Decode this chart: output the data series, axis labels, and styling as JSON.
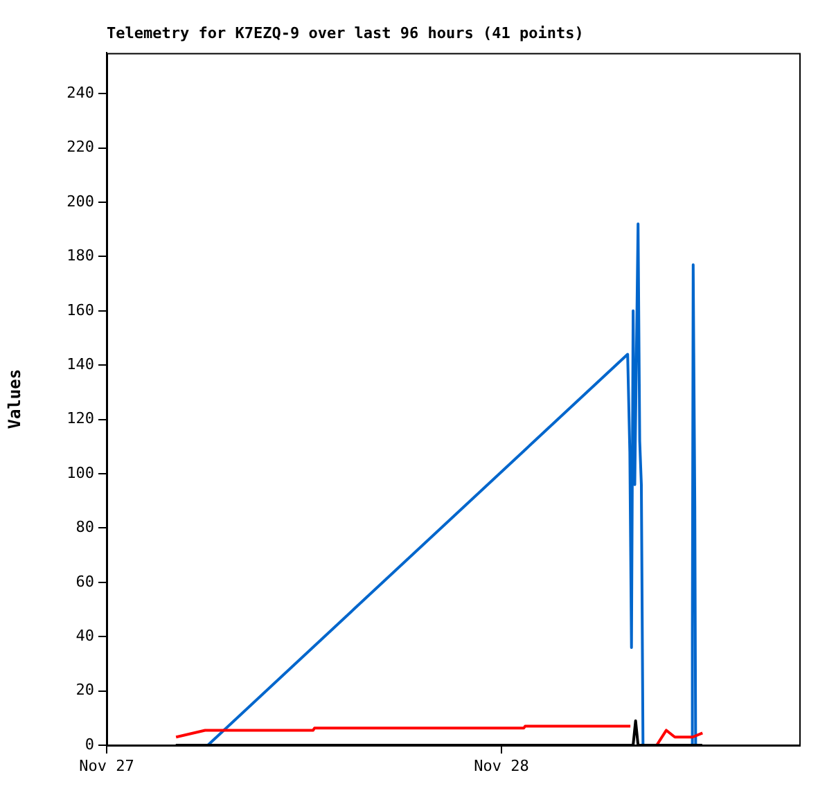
{
  "chart_data": {
    "type": "line",
    "title": "Telemetry for K7EZQ-9 over last 96 hours (41 points)",
    "ylabel": "Values",
    "xlim": [
      "--11-27",
      "--11-28T18:06"
    ],
    "xticks": [
      {
        "value": "--11-27",
        "label": "Nov 27"
      },
      {
        "value": "--11-28",
        "label": "Nov 28"
      }
    ],
    "ylim": [
      0,
      255
    ],
    "yticks": [
      0,
      20,
      40,
      60,
      80,
      100,
      120,
      140,
      160,
      180,
      200,
      220,
      240
    ],
    "grid": false,
    "series": [
      {
        "color": "#000000",
        "x": [
          "--11-27T04:12",
          "--11-28T08:00",
          "--11-28T08:09",
          "--11-28T08:18",
          "--11-28T12:12"
        ],
        "values": [
          0,
          0,
          9,
          0,
          0
        ]
      },
      {
        "color": "#ff0000",
        "x": [
          "--11-27T04:13",
          "--11-27T05:59",
          "--11-27T12:33",
          "--11-27T12:38",
          "--11-28T01:21",
          "--11-28T01:26",
          "--11-28T07:50",
          "--11-28T08:36",
          "--11-28T09:26",
          "--11-28T10:01",
          "--11-28T10:32",
          "--11-28T11:37",
          "--11-28T12:13"
        ],
        "values": [
          3,
          5.5,
          5.5,
          6.3,
          6.3,
          7,
          7,
          null,
          0,
          5.5,
          3,
          3,
          4.5
        ]
      },
      {
        "color": "#0066cc",
        "x": [
          "--11-27T06:09",
          "--11-28T07:40",
          "--11-28T07:48",
          "--11-28T07:54",
          "--11-28T08:00",
          "--11-28T08:06",
          "--11-28T08:18",
          "--11-28T08:24",
          "--11-28T08:30",
          "--11-28T08:36",
          "--11-28T11:33",
          "--11-28T11:36",
          "--11-28T11:39",
          "--11-28T11:45",
          "--11-28T11:48"
        ],
        "values": [
          0,
          144,
          108,
          36,
          160,
          96,
          192,
          112,
          96,
          0,
          0,
          41,
          177,
          88,
          0
        ]
      }
    ]
  }
}
